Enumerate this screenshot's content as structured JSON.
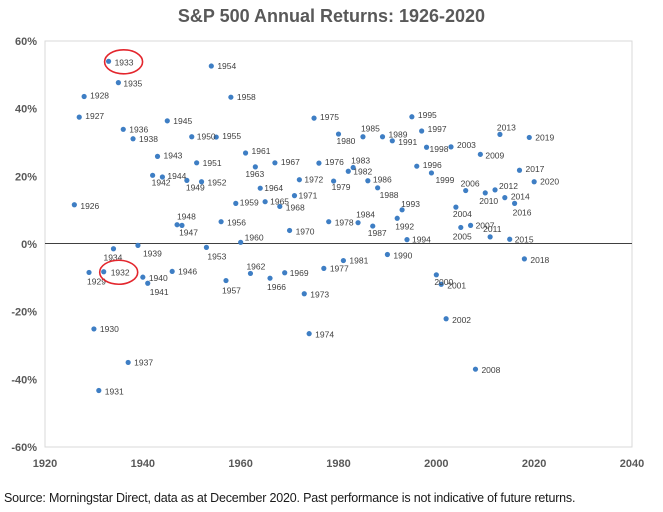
{
  "chart_data": {
    "type": "scatter",
    "title": "S&P 500 Annual Returns: 1926-2020",
    "xlabel": "",
    "ylabel": "",
    "xlim": [
      1920,
      2040
    ],
    "ylim": [
      -60,
      60
    ],
    "x_ticks": [
      "1920",
      "1940",
      "1960",
      "1980",
      "2000",
      "2020",
      "2040"
    ],
    "y_ticks": [
      "-60%",
      "-40%",
      "-20%",
      "0%",
      "20%",
      "40%",
      "60%"
    ],
    "grid": false,
    "zero_line": true,
    "marker_color": "#3e7ec4",
    "highlight_color": "#e3262d",
    "highlighted": [
      "1933",
      "1932"
    ],
    "points": [
      {
        "label": "1926",
        "x": 1926,
        "y": 11.6
      },
      {
        "label": "1927",
        "x": 1927,
        "y": 37.5
      },
      {
        "label": "1928",
        "x": 1928,
        "y": 43.6
      },
      {
        "label": "1929",
        "x": 1929,
        "y": -8.4
      },
      {
        "label": "1930",
        "x": 1930,
        "y": -25.1
      },
      {
        "label": "1931",
        "x": 1931,
        "y": -43.3
      },
      {
        "label": "1932",
        "x": 1932,
        "y": -8.2
      },
      {
        "label": "1933",
        "x": 1933,
        "y": 54.0
      },
      {
        "label": "1934",
        "x": 1934,
        "y": -1.4
      },
      {
        "label": "1935",
        "x": 1935,
        "y": 47.7
      },
      {
        "label": "1936",
        "x": 1936,
        "y": 33.9
      },
      {
        "label": "1937",
        "x": 1937,
        "y": -35.0
      },
      {
        "label": "1938",
        "x": 1938,
        "y": 31.1
      },
      {
        "label": "1939",
        "x": 1939,
        "y": -0.4
      },
      {
        "label": "1940",
        "x": 1940,
        "y": -9.8
      },
      {
        "label": "1941",
        "x": 1941,
        "y": -11.6
      },
      {
        "label": "1942",
        "x": 1942,
        "y": 20.3
      },
      {
        "label": "1943",
        "x": 1943,
        "y": 25.9
      },
      {
        "label": "1944",
        "x": 1944,
        "y": 19.8
      },
      {
        "label": "1945",
        "x": 1945,
        "y": 36.4
      },
      {
        "label": "1946",
        "x": 1946,
        "y": -8.1
      },
      {
        "label": "1947",
        "x": 1947,
        "y": 5.7
      },
      {
        "label": "1948",
        "x": 1948,
        "y": 5.5
      },
      {
        "label": "1949",
        "x": 1949,
        "y": 18.8
      },
      {
        "label": "1950",
        "x": 1950,
        "y": 31.7
      },
      {
        "label": "1951",
        "x": 1951,
        "y": 24.0
      },
      {
        "label": "1952",
        "x": 1952,
        "y": 18.4
      },
      {
        "label": "1953",
        "x": 1953,
        "y": -1.0
      },
      {
        "label": "1954",
        "x": 1954,
        "y": 52.6
      },
      {
        "label": "1955",
        "x": 1955,
        "y": 31.6
      },
      {
        "label": "1956",
        "x": 1956,
        "y": 6.6
      },
      {
        "label": "1957",
        "x": 1957,
        "y": -10.8
      },
      {
        "label": "1958",
        "x": 1958,
        "y": 43.4
      },
      {
        "label": "1959",
        "x": 1959,
        "y": 12.0
      },
      {
        "label": "1960",
        "x": 1960,
        "y": 0.5
      },
      {
        "label": "1961",
        "x": 1961,
        "y": 26.9
      },
      {
        "label": "1962",
        "x": 1962,
        "y": -8.7
      },
      {
        "label": "1963",
        "x": 1963,
        "y": 22.8
      },
      {
        "label": "1964",
        "x": 1964,
        "y": 16.5
      },
      {
        "label": "1965",
        "x": 1965,
        "y": 12.5
      },
      {
        "label": "1966",
        "x": 1966,
        "y": -10.1
      },
      {
        "label": "1967",
        "x": 1967,
        "y": 24.0
      },
      {
        "label": "1968",
        "x": 1968,
        "y": 11.1
      },
      {
        "label": "1969",
        "x": 1969,
        "y": -8.5
      },
      {
        "label": "1970",
        "x": 1970,
        "y": 4.0
      },
      {
        "label": "1971",
        "x": 1971,
        "y": 14.3
      },
      {
        "label": "1972",
        "x": 1972,
        "y": 19.0
      },
      {
        "label": "1973",
        "x": 1973,
        "y": -14.7
      },
      {
        "label": "1974",
        "x": 1974,
        "y": -26.5
      },
      {
        "label": "1975",
        "x": 1975,
        "y": 37.2
      },
      {
        "label": "1976",
        "x": 1976,
        "y": 23.9
      },
      {
        "label": "1977",
        "x": 1977,
        "y": -7.2
      },
      {
        "label": "1978",
        "x": 1978,
        "y": 6.6
      },
      {
        "label": "1979",
        "x": 1979,
        "y": 18.6
      },
      {
        "label": "1980",
        "x": 1980,
        "y": 32.5
      },
      {
        "label": "1981",
        "x": 1981,
        "y": -4.9
      },
      {
        "label": "1982",
        "x": 1982,
        "y": 21.5
      },
      {
        "label": "1983",
        "x": 1983,
        "y": 22.6
      },
      {
        "label": "1984",
        "x": 1984,
        "y": 6.3
      },
      {
        "label": "1985",
        "x": 1985,
        "y": 31.7
      },
      {
        "label": "1986",
        "x": 1986,
        "y": 18.7
      },
      {
        "label": "1987",
        "x": 1987,
        "y": 5.3
      },
      {
        "label": "1988",
        "x": 1988,
        "y": 16.6
      },
      {
        "label": "1989",
        "x": 1989,
        "y": 31.7
      },
      {
        "label": "1990",
        "x": 1990,
        "y": -3.1
      },
      {
        "label": "1991",
        "x": 1991,
        "y": 30.5
      },
      {
        "label": "1992",
        "x": 1992,
        "y": 7.6
      },
      {
        "label": "1993",
        "x": 1993,
        "y": 10.1
      },
      {
        "label": "1994",
        "x": 1994,
        "y": 1.3
      },
      {
        "label": "1995",
        "x": 1995,
        "y": 37.6
      },
      {
        "label": "1996",
        "x": 1996,
        "y": 23.0
      },
      {
        "label": "1997",
        "x": 1997,
        "y": 33.4
      },
      {
        "label": "1998",
        "x": 1998,
        "y": 28.6
      },
      {
        "label": "1999",
        "x": 1999,
        "y": 21.0
      },
      {
        "label": "2000",
        "x": 2000,
        "y": -9.1
      },
      {
        "label": "2001",
        "x": 2001,
        "y": -11.9
      },
      {
        "label": "2002",
        "x": 2002,
        "y": -22.1
      },
      {
        "label": "2003",
        "x": 2003,
        "y": 28.7
      },
      {
        "label": "2004",
        "x": 2004,
        "y": 10.9
      },
      {
        "label": "2005",
        "x": 2005,
        "y": 4.9
      },
      {
        "label": "2006",
        "x": 2006,
        "y": 15.8
      },
      {
        "label": "2007",
        "x": 2007,
        "y": 5.5
      },
      {
        "label": "2008",
        "x": 2008,
        "y": -37.0
      },
      {
        "label": "2009",
        "x": 2009,
        "y": 26.5
      },
      {
        "label": "2010",
        "x": 2010,
        "y": 15.1
      },
      {
        "label": "2011",
        "x": 2011,
        "y": 2.1
      },
      {
        "label": "2012",
        "x": 2012,
        "y": 16.0
      },
      {
        "label": "2013",
        "x": 2013,
        "y": 32.4
      },
      {
        "label": "2014",
        "x": 2014,
        "y": 13.7
      },
      {
        "label": "2015",
        "x": 2015,
        "y": 1.4
      },
      {
        "label": "2016",
        "x": 2016,
        "y": 12.0
      },
      {
        "label": "2017",
        "x": 2017,
        "y": 21.8
      },
      {
        "label": "2018",
        "x": 2018,
        "y": -4.4
      },
      {
        "label": "2019",
        "x": 2019,
        "y": 31.5
      },
      {
        "label": "2020",
        "x": 2020,
        "y": 18.4
      }
    ]
  },
  "source_note": "Source: Morningstar Direct, data as at December 2020. Past performance is not indicative of future returns."
}
